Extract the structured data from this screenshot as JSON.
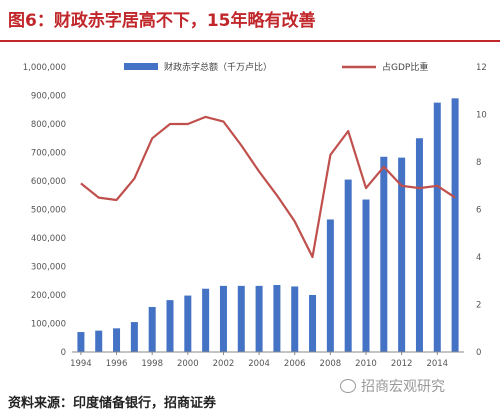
{
  "figure": {
    "title": "图6：财政赤字居高不下，15年略有改善",
    "source": "资料来源：印度储备银行，招商证券",
    "watermark": "招商宏观研究"
  },
  "chart_data": {
    "type": "bar+line",
    "categories": [
      "1994",
      "1995",
      "1996",
      "1997",
      "1998",
      "1999",
      "2000",
      "2001",
      "2002",
      "2003",
      "2004",
      "2005",
      "2006",
      "2007",
      "2008",
      "2009",
      "2010",
      "2011",
      "2012",
      "2013",
      "2014",
      "2015"
    ],
    "x_tick_labels": [
      "1994",
      "1996",
      "1998",
      "2000",
      "2002",
      "2004",
      "2006",
      "2008",
      "2010",
      "2012",
      "2014"
    ],
    "series": [
      {
        "name": "财政赤字总额（千万卢比）",
        "type": "bar",
        "axis": "left",
        "color": "#4472c4",
        "values": [
          70000,
          75000,
          83000,
          105000,
          158000,
          182000,
          198000,
          222000,
          232000,
          232000,
          232000,
          235000,
          230000,
          200000,
          465000,
          605000,
          535000,
          685000,
          682000,
          750000,
          875000,
          890000
        ]
      },
      {
        "name": "占GDP比重",
        "type": "line",
        "axis": "right",
        "color": "#c0504d",
        "values": [
          7.1,
          6.5,
          6.4,
          7.3,
          9.0,
          9.6,
          9.6,
          9.9,
          9.7,
          8.7,
          7.6,
          6.6,
          5.5,
          4.0,
          8.3,
          9.3,
          6.9,
          7.8,
          7.0,
          6.9,
          7.0,
          6.5
        ]
      }
    ],
    "y_left": {
      "min": 0,
      "max": 1000000,
      "ticks": [
        0,
        100000,
        200000,
        300000,
        400000,
        500000,
        600000,
        700000,
        800000,
        900000,
        1000000
      ],
      "tick_labels": [
        "0",
        "100,000",
        "200,000",
        "300,000",
        "400,000",
        "500,000",
        "600,000",
        "700,000",
        "800,000",
        "900,000",
        "1,000,000"
      ]
    },
    "y_right": {
      "min": 0,
      "max": 12,
      "ticks": [
        0,
        2,
        4,
        6,
        8,
        10,
        12
      ],
      "tick_labels": [
        "0",
        "2",
        "4",
        "6",
        "8",
        "10",
        "12"
      ]
    },
    "grid": false,
    "legend": "top"
  }
}
